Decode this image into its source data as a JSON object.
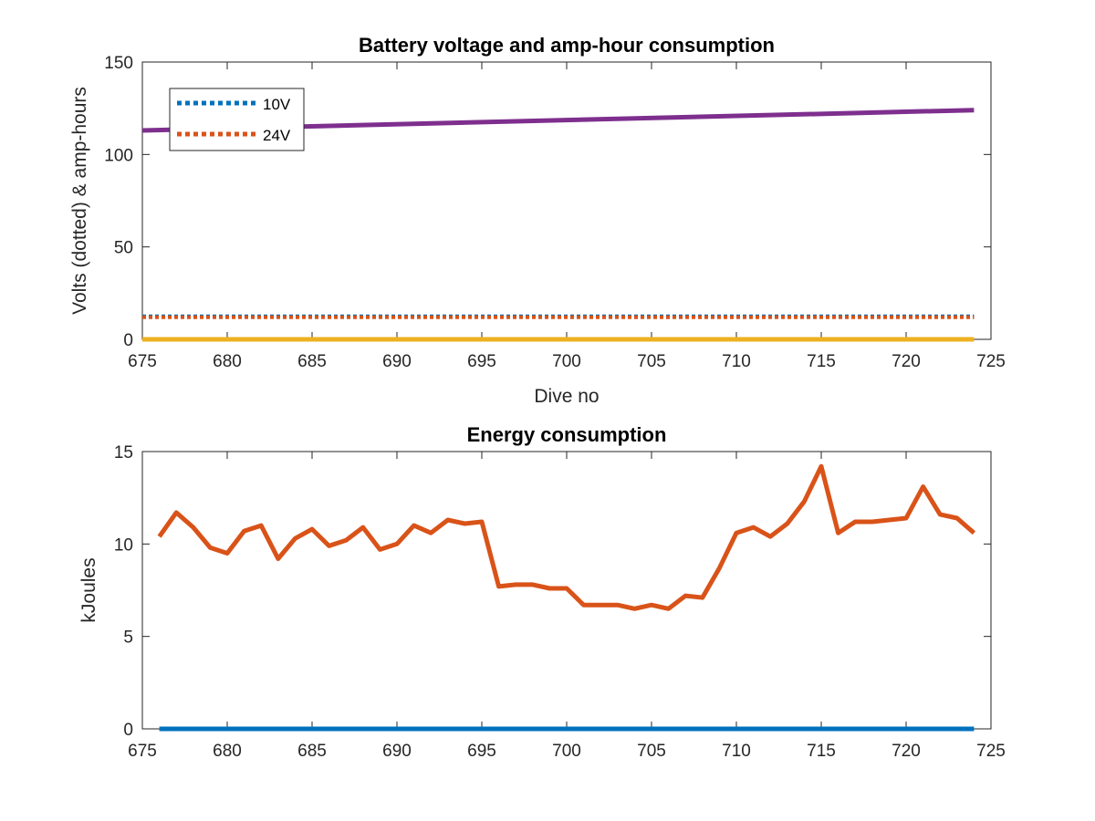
{
  "chart_data": [
    {
      "type": "line",
      "title": "Battery voltage and amp-hour consumption",
      "xlabel": "Dive no",
      "ylabel": "Volts (dotted) & amp-hours",
      "xlim": [
        675,
        725
      ],
      "ylim": [
        0,
        150
      ],
      "xticks": [
        675,
        680,
        685,
        690,
        695,
        700,
        705,
        710,
        715,
        720,
        725
      ],
      "yticks": [
        0,
        50,
        100,
        150
      ],
      "legend": {
        "placement": "top-left",
        "entries": [
          "10V",
          "24V"
        ]
      },
      "series": [
        {
          "name": "10V",
          "style": "dotted",
          "color": "#0072BD",
          "x": [
            675,
            724
          ],
          "y": [
            12.5,
            12.5
          ]
        },
        {
          "name": "24V",
          "style": "dotted",
          "color": "#D95319",
          "x": [
            675,
            724
          ],
          "y": [
            12.0,
            12.0
          ]
        },
        {
          "style": "solid",
          "color": "#EDB120",
          "x": [
            675,
            724
          ],
          "y": [
            0,
            0
          ]
        },
        {
          "style": "solid",
          "color": "#7E2F8E",
          "x": [
            675,
            724
          ],
          "y": [
            113,
            124
          ]
        }
      ]
    },
    {
      "type": "line",
      "title": "Energy consumption",
      "xlabel": "",
      "ylabel": "kJoules",
      "xlim": [
        675,
        725
      ],
      "ylim": [
        0,
        15
      ],
      "xticks": [
        675,
        680,
        685,
        690,
        695,
        700,
        705,
        710,
        715,
        720,
        725
      ],
      "yticks": [
        0,
        5,
        10,
        15
      ],
      "series": [
        {
          "style": "solid",
          "color": "#D95319",
          "x": [
            676,
            677,
            678,
            679,
            680,
            681,
            682,
            683,
            684,
            685,
            686,
            687,
            688,
            689,
            690,
            691,
            692,
            693,
            694,
            695,
            696,
            697,
            698,
            699,
            700,
            701,
            702,
            703,
            704,
            705,
            706,
            707,
            708,
            709,
            710,
            711,
            712,
            713,
            714,
            715,
            716,
            717,
            718,
            719,
            720,
            721,
            722,
            723,
            724
          ],
          "y": [
            10.4,
            11.7,
            10.9,
            9.8,
            9.5,
            10.7,
            11.0,
            9.2,
            10.3,
            10.8,
            9.9,
            10.2,
            10.9,
            9.7,
            10.0,
            11.0,
            10.6,
            11.3,
            11.1,
            11.2,
            7.7,
            7.8,
            7.8,
            7.6,
            7.6,
            6.7,
            6.7,
            6.7,
            6.5,
            6.7,
            6.5,
            7.2,
            7.1,
            8.7,
            10.6,
            10.9,
            10.4,
            11.1,
            12.3,
            14.2,
            10.6,
            11.2,
            11.2,
            11.3,
            11.4,
            13.1,
            11.6,
            11.4,
            10.6
          ]
        },
        {
          "style": "solid",
          "color": "#0072BD",
          "x": [
            676,
            724
          ],
          "y": [
            0,
            0
          ]
        }
      ]
    }
  ]
}
